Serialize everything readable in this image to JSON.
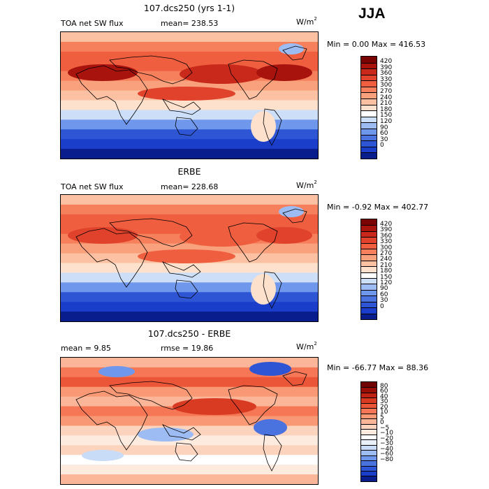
{
  "season": "JJA",
  "units_text": "W/m",
  "units_exp": "2",
  "colors": {
    "abs_scale": [
      "#0a1d8c",
      "#1a3ec9",
      "#2e55d4",
      "#4a73e0",
      "#6f97ec",
      "#9cbcf3",
      "#cddff8",
      "#ffffff",
      "#fde1cd",
      "#fcc0a2",
      "#f9a07c",
      "#f67f5c",
      "#ef5e3f",
      "#e0422b",
      "#c9291a",
      "#a8140d",
      "#7a0404"
    ],
    "diff_scale": [
      "#0a1d8c",
      "#1a3ec9",
      "#2e55d4",
      "#4a73e0",
      "#6f97ec",
      "#9cbcf3",
      "#c9dcf7",
      "#e9f1fb",
      "#ffffff",
      "#fdebe0",
      "#fcd3bd",
      "#fbb598",
      "#f99874",
      "#f57755",
      "#ea5637",
      "#d83a22",
      "#bf2213",
      "#9a0e09",
      "#700303"
    ]
  },
  "panels": [
    {
      "title": "107.dcs250 (yrs 1-1)",
      "variable": "TOA net SW flux",
      "mean_text": "mean= 238.53",
      "rmse_text": "",
      "minmax_text": "Min =    0.00 Max = 416.53",
      "colorbar_labels": [
        "420",
        "390",
        "360",
        "330",
        "300",
        "270",
        "240",
        "210",
        "180",
        "150",
        "120",
        "90",
        "60",
        "30",
        "0"
      ],
      "scale": "abs_scale"
    },
    {
      "title": "ERBE",
      "variable": "TOA net SW flux",
      "mean_text": "mean= 228.68",
      "rmse_text": "",
      "minmax_text": "Min =  -0.92 Max = 402.77",
      "colorbar_labels": [
        "420",
        "390",
        "360",
        "330",
        "300",
        "270",
        "240",
        "210",
        "180",
        "150",
        "120",
        "90",
        "60",
        "30",
        "0"
      ],
      "scale": "abs_scale"
    },
    {
      "title": "107.dcs250 - ERBE",
      "variable": "",
      "mean_text": "mean =   9.85",
      "rmse_text": "rmse =  19.86",
      "minmax_text": "Min = -66.77 Max =  88.36",
      "colorbar_labels": [
        "80",
        "60",
        "40",
        "30",
        "20",
        "10",
        "5",
        "0",
        "−5",
        "−10",
        "−20",
        "−30",
        "−40",
        "−60",
        "−80"
      ],
      "scale": "diff_scale"
    }
  ],
  "chart_data": [
    {
      "type": "heatmap",
      "title": "107.dcs250 (yrs 1-1)",
      "variable": "TOA net SW flux",
      "units": "W/m2",
      "season": "JJA",
      "mean": 238.53,
      "min": 0.0,
      "max": 416.53,
      "levels": [
        0,
        30,
        60,
        90,
        120,
        150,
        180,
        210,
        240,
        270,
        300,
        330,
        360,
        390,
        420
      ]
    },
    {
      "type": "heatmap",
      "title": "ERBE",
      "variable": "TOA net SW flux",
      "units": "W/m2",
      "season": "JJA",
      "mean": 228.68,
      "min": -0.92,
      "max": 402.77,
      "levels": [
        0,
        30,
        60,
        90,
        120,
        150,
        180,
        210,
        240,
        270,
        300,
        330,
        360,
        390,
        420
      ]
    },
    {
      "type": "heatmap",
      "title": "107.dcs250 - ERBE",
      "units": "W/m2",
      "season": "JJA",
      "mean": 9.85,
      "rmse": 19.86,
      "min": -66.77,
      "max": 88.36,
      "levels": [
        -80,
        -60,
        -40,
        -30,
        -20,
        -10,
        -5,
        0,
        5,
        10,
        20,
        30,
        40,
        60,
        80
      ]
    }
  ]
}
